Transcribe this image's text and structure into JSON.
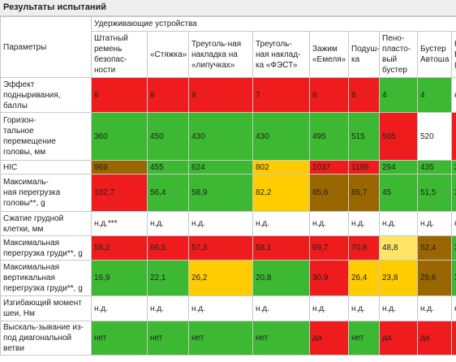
{
  "header": {
    "title": "Результаты испытаний"
  },
  "table": {
    "group_header": "Удерживающие устройства",
    "param_header": "Параметры",
    "columns": [
      "Штатный\nремень\nбезопас-\nности",
      "«Стяжка»",
      "Треуголь-ная\nнакладка на\n«липучках»",
      "Треуголь-\nная наклад-\nка «ФЭСТ»",
      "Зажим\n«Емеля»",
      "Подуш-\nка",
      "Пено-\nпласто-\nвый\nбустер",
      "Бустер\nАвтоша",
      "Н\nБ\n("
    ],
    "rows": [
      {
        "label": "Эффект\nподныривания,\nбаллы",
        "cells": [
          {
            "text": "6",
            "color": "#ee1c1c"
          },
          {
            "text": "8",
            "color": "#ee1c1c"
          },
          {
            "text": "9",
            "color": "#ee1c1c"
          },
          {
            "text": "7",
            "color": "#ee1c1c"
          },
          {
            "text": "8",
            "color": "#ee1c1c"
          },
          {
            "text": "8",
            "color": "#ee1c1c"
          },
          {
            "text": "4",
            "color": "#3cb832"
          },
          {
            "text": "4",
            "color": "#3cb832"
          },
          {
            "text": "н",
            "color": "#ffffff"
          }
        ]
      },
      {
        "label": "Горизон-\nтальное\nперемещение\nголовы, мм",
        "cells": [
          {
            "text": "360",
            "color": "#3cb832"
          },
          {
            "text": "450",
            "color": "#3cb832"
          },
          {
            "text": "430",
            "color": "#3cb832"
          },
          {
            "text": "430",
            "color": "#3cb832"
          },
          {
            "text": "495",
            "color": "#3cb832"
          },
          {
            "text": "515",
            "color": "#3cb832"
          },
          {
            "text": "565",
            "color": "#ee1c1c"
          },
          {
            "text": "520",
            "color": "#ffffff"
          },
          {
            "text": "",
            "color": "#ee1c1c"
          }
        ]
      },
      {
        "label": "HIC",
        "cells": [
          {
            "text": "969",
            "color": "#996600"
          },
          {
            "text": "455",
            "color": "#3cb832"
          },
          {
            "text": "624",
            "color": "#3cb832"
          },
          {
            "text": "802",
            "color": "#ffcc00"
          },
          {
            "text": "1037",
            "color": "#ee1c1c"
          },
          {
            "text": "1198",
            "color": "#ee1c1c"
          },
          {
            "text": "294",
            "color": "#3cb832"
          },
          {
            "text": "435",
            "color": "#3cb832"
          },
          {
            "text": "3",
            "color": "#3cb832"
          }
        ]
      },
      {
        "label": "Максималь-\nная перегрузка\nголовы**, g",
        "cells": [
          {
            "text": "102,7",
            "color": "#ee1c1c"
          },
          {
            "text": "56,4",
            "color": "#3cb832"
          },
          {
            "text": "58,9",
            "color": "#3cb832"
          },
          {
            "text": "82,2",
            "color": "#ffcc00"
          },
          {
            "text": "85,6",
            "color": "#996600"
          },
          {
            "text": "85,7",
            "color": "#996600"
          },
          {
            "text": "45",
            "color": "#3cb832"
          },
          {
            "text": "51,5",
            "color": "#3cb832"
          },
          {
            "text": "3",
            "color": "#3cb832"
          }
        ]
      },
      {
        "label": "Сжатие грудной\nклетки, мм",
        "cells": [
          {
            "text": "н.д.***",
            "color": "#ffffff"
          },
          {
            "text": "н.д.",
            "color": "#ffffff"
          },
          {
            "text": "н.д.",
            "color": "#ffffff"
          },
          {
            "text": "н.д.",
            "color": "#ffffff"
          },
          {
            "text": "н.д.",
            "color": "#ffffff"
          },
          {
            "text": "н.д.",
            "color": "#ffffff"
          },
          {
            "text": "н.д.",
            "color": "#ffffff"
          },
          {
            "text": "н.д.",
            "color": "#ffffff"
          },
          {
            "text": "н",
            "color": "#ffffff"
          }
        ]
      },
      {
        "label": "Максимальная\nперегрузка груди**, g",
        "cells": [
          {
            "text": "58,2",
            "color": "#ee1c1c"
          },
          {
            "text": "66,5",
            "color": "#ee1c1c"
          },
          {
            "text": "57,3",
            "color": "#ee1c1c"
          },
          {
            "text": "58,1",
            "color": "#ee1c1c"
          },
          {
            "text": "69,7",
            "color": "#ee1c1c"
          },
          {
            "text": "70,8",
            "color": "#ee1c1c"
          },
          {
            "text": "48,8",
            "color": "#ffe566"
          },
          {
            "text": "52,4",
            "color": "#996600"
          },
          {
            "text": "3",
            "color": "#3cb832"
          }
        ]
      },
      {
        "label": "Максимальная\nвертикальная\nперегрузка груди**, g",
        "cells": [
          {
            "text": "16,9",
            "color": "#3cb832"
          },
          {
            "text": "22,1",
            "color": "#3cb832"
          },
          {
            "text": "26,2",
            "color": "#ffcc00"
          },
          {
            "text": "20,8",
            "color": "#3cb832"
          },
          {
            "text": "30,9",
            "color": "#ee1c1c"
          },
          {
            "text": "26,4",
            "color": "#ffcc00"
          },
          {
            "text": "23,8",
            "color": "#ffcc00"
          },
          {
            "text": "29,6",
            "color": "#996600"
          },
          {
            "text": "3",
            "color": "#3cb832"
          }
        ]
      },
      {
        "label": "Изгибающий момент\nшеи, Нм",
        "cells": [
          {
            "text": "н.д.",
            "color": "#ffffff"
          },
          {
            "text": "н.д.",
            "color": "#ffffff"
          },
          {
            "text": "н.д.",
            "color": "#ffffff"
          },
          {
            "text": "н.д.",
            "color": "#ffffff"
          },
          {
            "text": "н.д.",
            "color": "#ffffff"
          },
          {
            "text": "н.д.",
            "color": "#ffffff"
          },
          {
            "text": "н.д.",
            "color": "#ffffff"
          },
          {
            "text": "н.д.",
            "color": "#ffffff"
          },
          {
            "text": "н",
            "color": "#ffffff"
          }
        ]
      },
      {
        "label": "Выскаль-зывание из-\nпод диагональной\nветви",
        "cells": [
          {
            "text": "нет",
            "color": "#3cb832"
          },
          {
            "text": "нет",
            "color": "#3cb832"
          },
          {
            "text": "нет",
            "color": "#3cb832"
          },
          {
            "text": "нет",
            "color": "#3cb832"
          },
          {
            "text": "да",
            "color": "#ee1c1c"
          },
          {
            "text": "нет",
            "color": "#3cb832"
          },
          {
            "text": "да",
            "color": "#ee1c1c"
          },
          {
            "text": "да",
            "color": "#ee1c1c"
          },
          {
            "text": "",
            "color": "#ee1c1c"
          }
        ]
      }
    ]
  }
}
